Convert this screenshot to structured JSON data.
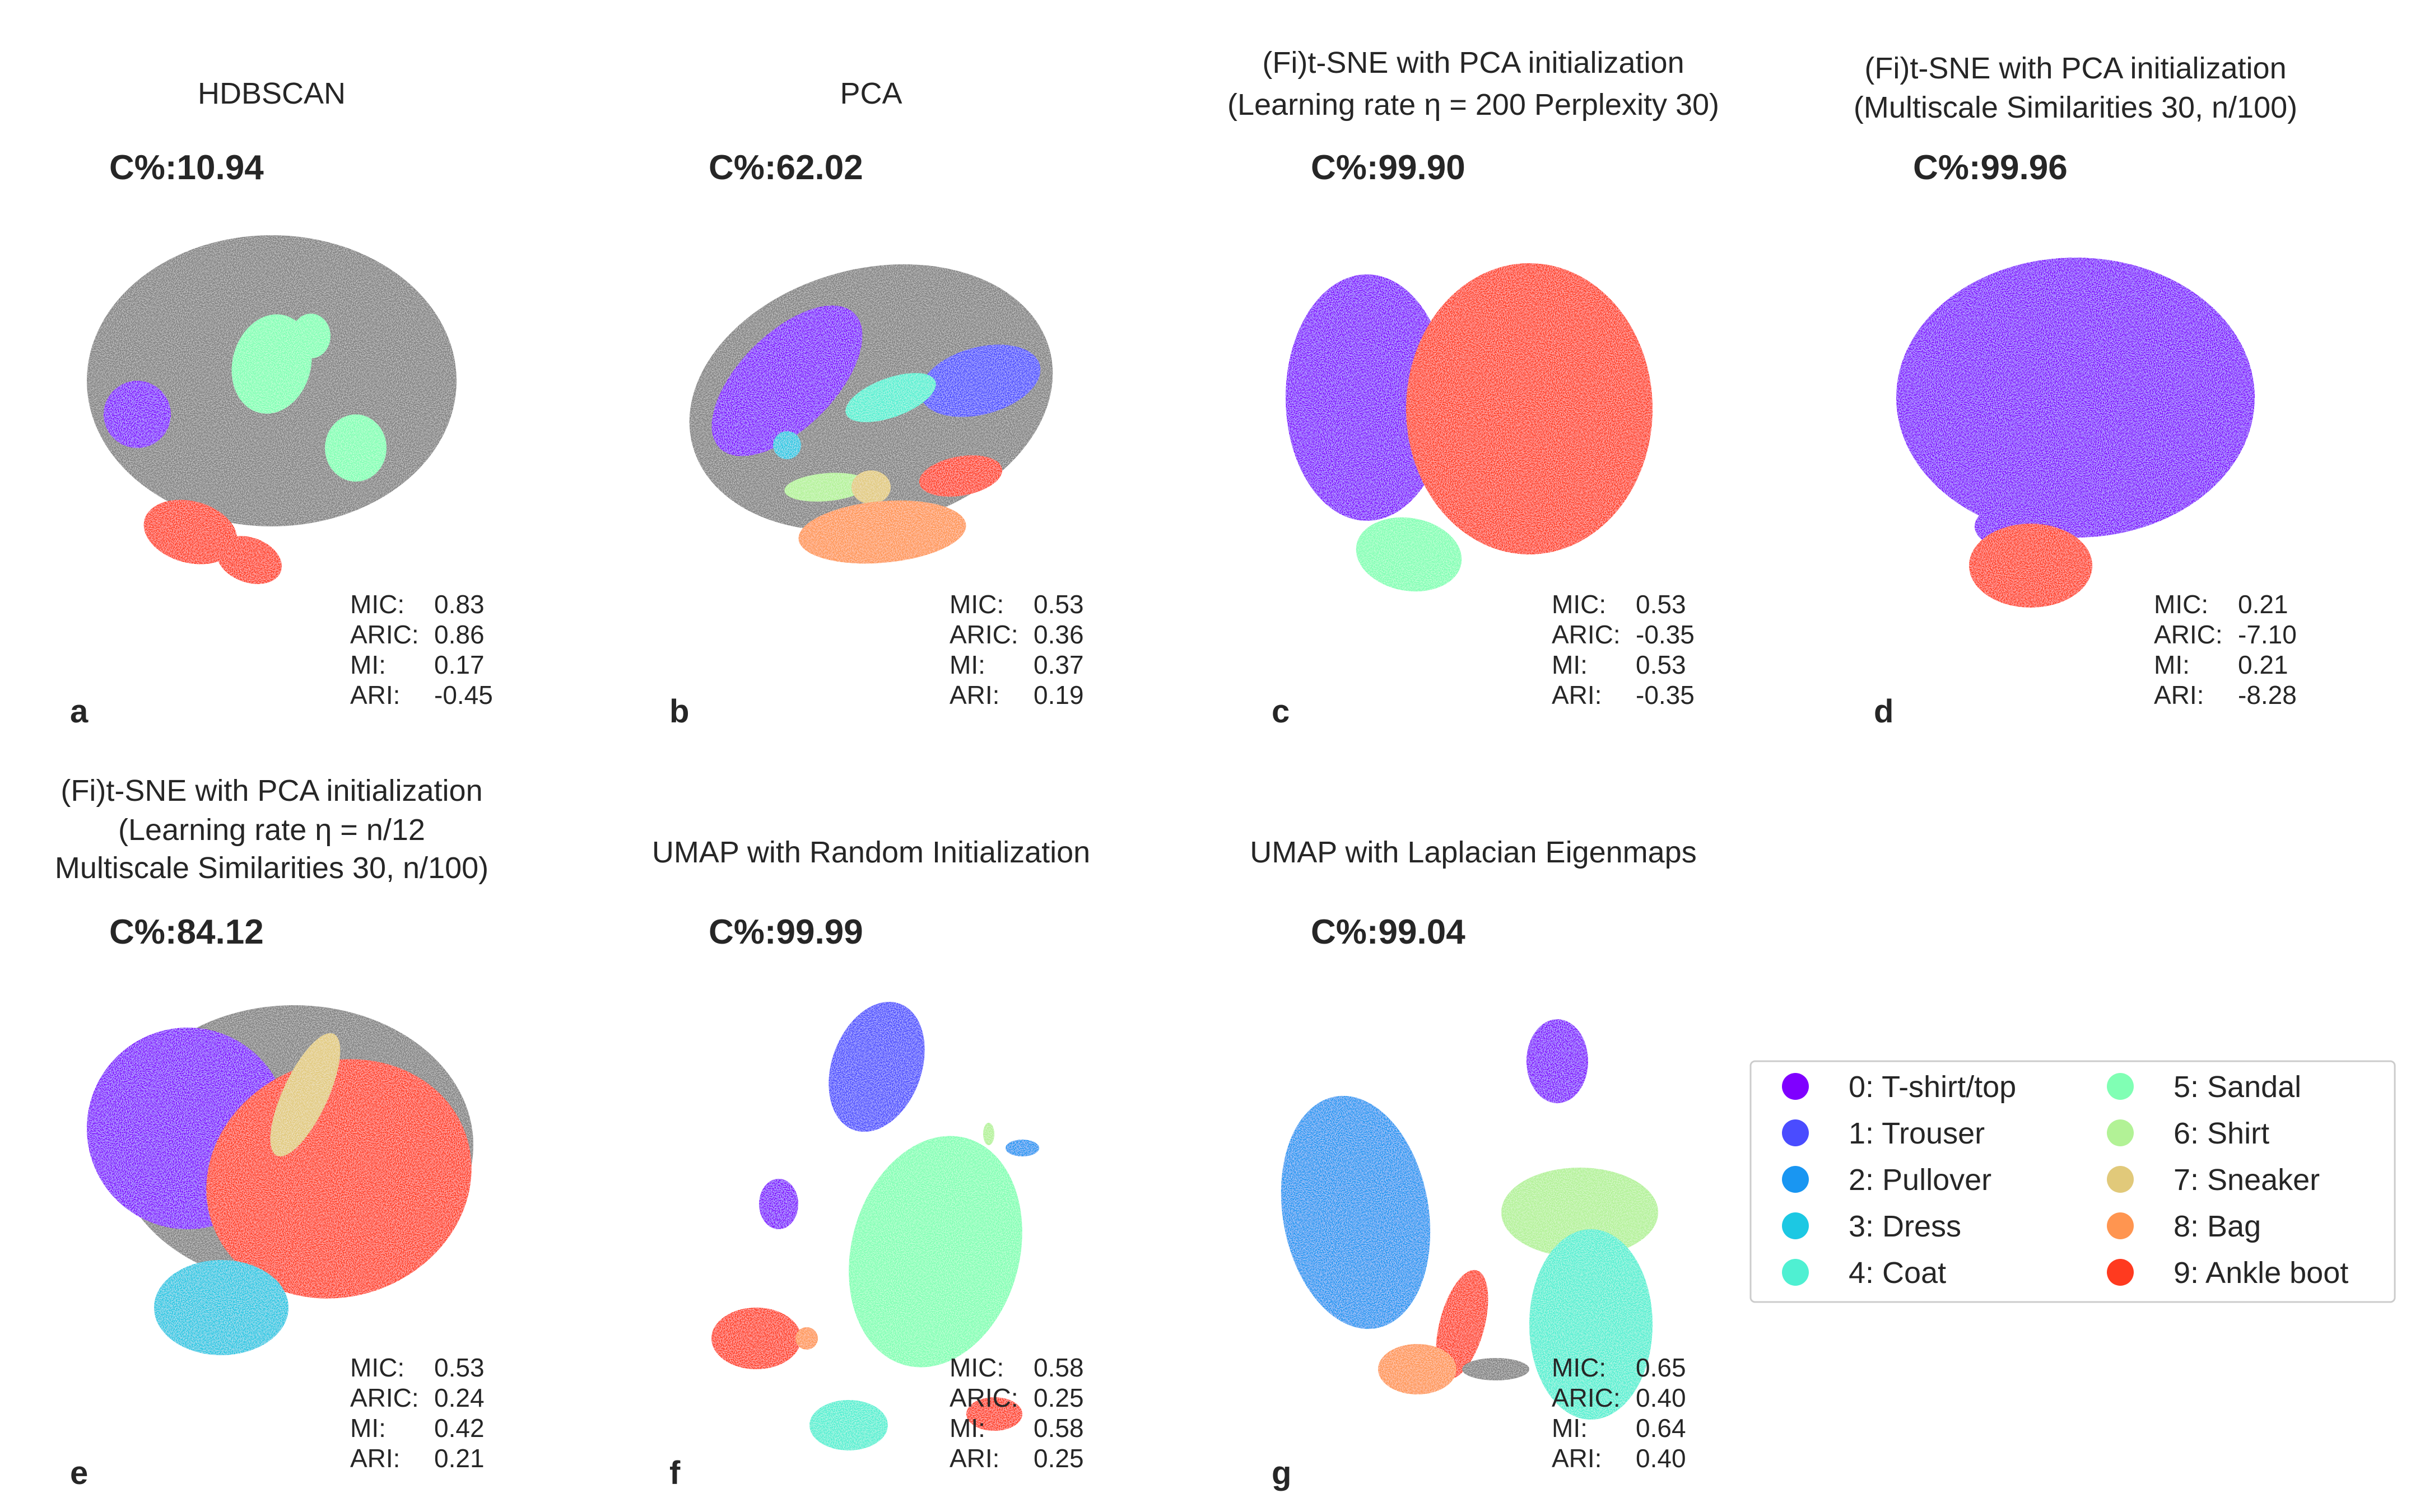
{
  "chart_data": [
    {
      "type": "scatter",
      "panel": "a",
      "title_lines": [
        "HDBSCAN"
      ],
      "c_percent": "C%:10.94",
      "metrics": [
        [
          "MIC:",
          "0.83"
        ],
        [
          "ARIC:",
          "0.86"
        ],
        [
          "MI:",
          "0.17"
        ],
        [
          "ARI:",
          "-0.45"
        ]
      ],
      "clusters": [
        {
          "class": 0,
          "share": 0.05
        },
        {
          "class": 5,
          "share": 0.12
        },
        {
          "class": 9,
          "share": 0.08
        },
        {
          "class": "noise",
          "share": 0.75
        }
      ]
    },
    {
      "type": "scatter",
      "panel": "b",
      "title_lines": [
        "PCA"
      ],
      "c_percent": "C%:62.02",
      "metrics": [
        [
          "MIC:",
          "0.53"
        ],
        [
          "ARIC:",
          "0.36"
        ],
        [
          "MI:",
          "0.37"
        ],
        [
          "ARI:",
          "0.19"
        ]
      ],
      "clusters": [
        {
          "class": 0
        },
        {
          "class": 1
        },
        {
          "class": 3
        },
        {
          "class": 4
        },
        {
          "class": 6
        },
        {
          "class": 7
        },
        {
          "class": 8
        },
        {
          "class": 9
        },
        {
          "class": "noise"
        }
      ]
    },
    {
      "type": "scatter",
      "panel": "c",
      "title_lines": [
        "(Fi)t-SNE with PCA initialization",
        "(Learning rate η = 200 Perplexity 30)"
      ],
      "c_percent": "C%:99.90",
      "metrics": [
        [
          "MIC:",
          "0.53"
        ],
        [
          "ARIC:",
          "-0.35"
        ],
        [
          "MI:",
          "0.53"
        ],
        [
          "ARI:",
          "-0.35"
        ]
      ],
      "clusters": [
        {
          "class": 0
        },
        {
          "class": 9
        },
        {
          "class": 5
        }
      ]
    },
    {
      "type": "scatter",
      "panel": "d",
      "title_lines": [
        "(Fi)t-SNE with PCA initialization",
        "(Multiscale Similarities 30, n/100)"
      ],
      "c_percent": "C%:99.96",
      "metrics": [
        [
          "MIC:",
          "0.21"
        ],
        [
          "ARIC:",
          "-7.10"
        ],
        [
          "MI:",
          "0.21"
        ],
        [
          "ARI:",
          "-8.28"
        ]
      ],
      "clusters": [
        {
          "class": 0
        },
        {
          "class": 9
        }
      ]
    },
    {
      "type": "scatter",
      "panel": "e",
      "title_lines": [
        "(Fi)t-SNE with PCA initialization",
        "(Learning rate η = n/12",
        "Multiscale Similarities 30, n/100)"
      ],
      "c_percent": "C%:84.12",
      "metrics": [
        [
          "MIC:",
          "0.53"
        ],
        [
          "ARIC:",
          "0.24"
        ],
        [
          "MI:",
          "0.42"
        ],
        [
          "ARI:",
          "0.21"
        ]
      ],
      "clusters": [
        {
          "class": 0
        },
        {
          "class": 9
        },
        {
          "class": 7
        },
        {
          "class": 3
        },
        {
          "class": "noise"
        }
      ]
    },
    {
      "type": "scatter",
      "panel": "f",
      "title_lines": [
        "UMAP with Random Initialization"
      ],
      "c_percent": "C%:99.99",
      "metrics": [
        [
          "MIC:",
          "0.58"
        ],
        [
          "ARIC:",
          "0.25"
        ],
        [
          "MI:",
          "0.58"
        ],
        [
          "ARI:",
          "0.25"
        ]
      ],
      "clusters": [
        {
          "class": 1
        },
        {
          "class": 5
        },
        {
          "class": 0
        },
        {
          "class": 9
        },
        {
          "class": 8
        },
        {
          "class": 6
        },
        {
          "class": 4
        },
        {
          "class": 2
        }
      ]
    },
    {
      "type": "scatter",
      "panel": "g",
      "title_lines": [
        "UMAP with Laplacian Eigenmaps"
      ],
      "c_percent": "C%:99.04",
      "metrics": [
        [
          "MIC:",
          "0.65"
        ],
        [
          "ARIC:",
          "0.40"
        ],
        [
          "MI:",
          "0.64"
        ],
        [
          "ARI:",
          "0.40"
        ]
      ],
      "clusters": [
        {
          "class": 0
        },
        {
          "class": 2
        },
        {
          "class": 6
        },
        {
          "class": 4
        },
        {
          "class": 9
        },
        {
          "class": 8
        },
        {
          "class": "noise"
        }
      ]
    }
  ],
  "legend": {
    "placement": "bottom-right",
    "entries": [
      {
        "label": "0: T-shirt/top",
        "color": "#7f00ff"
      },
      {
        "label": "1: Trouser",
        "color": "#4a4cff"
      },
      {
        "label": "2: Pullover",
        "color": "#1996f2"
      },
      {
        "label": "3: Dress",
        "color": "#1cc8e3"
      },
      {
        "label": "4: Coat",
        "color": "#4ff0d2"
      },
      {
        "label": "5: Sandal",
        "color": "#80ffb4"
      },
      {
        "label": "6: Shirt",
        "color": "#b2f296"
      },
      {
        "label": "7: Sneaker",
        "color": "#e1c97a"
      },
      {
        "label": "8: Bag",
        "color": "#ff9550"
      },
      {
        "label": "9: Ankle boot",
        "color": "#ff3a1f"
      }
    ]
  },
  "noise_color": "#808080"
}
